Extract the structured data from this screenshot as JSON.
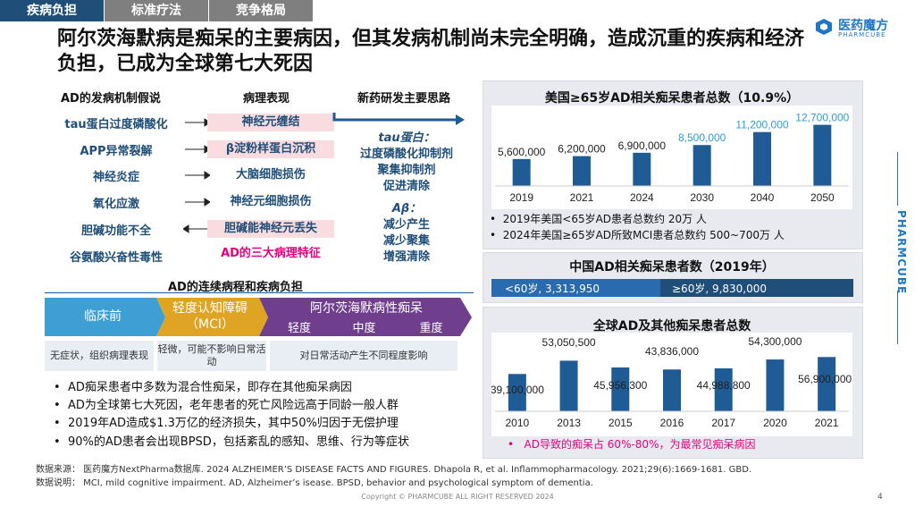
{
  "tabs": [
    "疾病负担",
    "标准疗法",
    "竞争格局"
  ],
  "title": "阿尔茨海默病是痴呆的主要病因，但其发病机制尚未完全明确，造成沉重的疾病和经济负担，已成为全球第七大死因",
  "logo": {
    "name": "医药魔方",
    "sub": "PHARMCUBE"
  },
  "side_brand": "PHARMCUBE",
  "mechanism": {
    "heading": "AD的发病机制假说",
    "pathology_heading": "病理表现",
    "drug_heading": "新药研发主要思路",
    "items": [
      "tau蛋白过度磷酸化",
      "APP异常裂解",
      "神经炎症",
      "氧化应激",
      "胆碱功能不全",
      "谷氨酸兴奋性毒性"
    ],
    "pathology": [
      "神经元缠结",
      "β淀粉样蛋白沉积",
      "大脑细胞损伤",
      "神经元细胞损伤",
      "胆碱能神经元丢失",
      "AD的三大病理特征"
    ],
    "tau_title": "tau蛋白：",
    "tau_lines": [
      "过度磷酸化抑制剂",
      "聚集抑制剂",
      "促进清除"
    ],
    "abeta_title": "Aβ：",
    "abeta_lines": [
      "减少产生",
      "减少聚集",
      "增强清除"
    ]
  },
  "course": {
    "heading": "AD的连续病程和疾病负担",
    "stages": [
      "临床前",
      "轻度认知障碍\n（MCI）",
      "阿尔茨海默病性痴呆"
    ],
    "severity": [
      "轻度",
      "中度",
      "重度"
    ],
    "descs": [
      "无症状，组织病理表现",
      "轻微，可能不影响日常活动",
      "对日常活动产生不同程度影响"
    ]
  },
  "bullets": [
    "AD痴呆患者中多数为混合性痴呆，即存在其他痴呆病因",
    "AD为全球第七大死因，老年患者的死亡风险远高于同龄一般人群",
    "2019年AD造成$1.3万亿的经济损失，其中50%归因于无偿护理",
    "90%的AD患者会出现BPSD，包括紊乱的感知、思维、行为等症状"
  ],
  "us_chart_notes": [
    "2019年美国<65岁AD患者总数约 20万 人",
    "2024年美国≥65岁AD所致MCI患者总数约 500~700万 人"
  ],
  "china": {
    "title": "中国AD相关痴呆患者数（2019年）",
    "lt60": "<60岁, 3,313,950",
    "ge60": "≥60岁, 9,830,000"
  },
  "global_note": "AD导致的痴呆占 60%-80%，为最常见痴呆病因",
  "source_lines": [
    "数据来源：  医药魔方NextPharma数据库. 2024 ALZHEIMER’S DISEASE FACTS AND FIGURES. Dhapola R, et al. Inflammopharmacology. 2021;29(6):1669-1681. GBD.",
    "数据说明：  MCI, mild cognitive impairment. AD, Alzheimer’s isease. BPSD, behavior and psychological symptom of dementia."
  ],
  "footer": "Copyright © PHARMCUBE ALL RIGHT RESERVED 2024",
  "page": "4",
  "colors": {
    "navy": "#1f4e79",
    "bar": "#1f5c96",
    "magenta": "#e4007f",
    "teal": "#2aa5a0"
  },
  "chart_data": [
    {
      "type": "bar",
      "title": "美国≥65岁AD相关痴呆患者总数（10.9%）",
      "categories": [
        "2019",
        "2021",
        "2024",
        "2030",
        "2040",
        "2050"
      ],
      "values": [
        5600000,
        6200000,
        6900000,
        8500000,
        11200000,
        12700000
      ],
      "labels": [
        "5,600,000",
        "6,200,000",
        "6,900,000",
        "8,500,000",
        "11,200,000",
        "12,700,000"
      ],
      "ylim": [
        0,
        13000000
      ]
    },
    {
      "type": "bar",
      "title": "全球AD及其他痴呆患者总数",
      "categories": [
        "2010",
        "2013",
        "2015",
        "2016",
        "2017",
        "2020",
        "2021"
      ],
      "values": [
        39100000,
        53050500,
        45956300,
        43836000,
        44988800,
        54300000,
        56900000
      ],
      "labels": [
        "39,100,000",
        "53,050,500",
        "45,956,300",
        "43,836,000",
        "44,988,800",
        "54,300,000",
        "56,900,000"
      ],
      "ylim": [
        0,
        60000000
      ]
    }
  ]
}
